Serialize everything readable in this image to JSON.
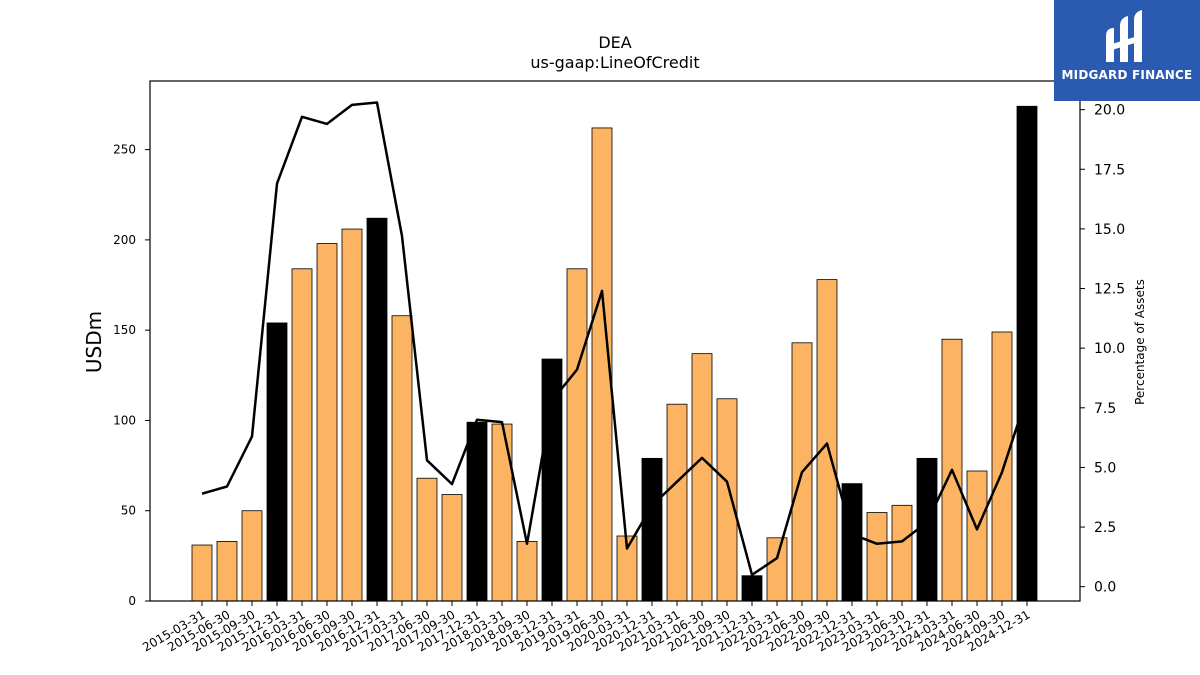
{
  "chart_data": {
    "type": "bar",
    "title": "DEA",
    "subtitle": "us-gaap:LineOfCredit",
    "ylabel": "USDm",
    "y2label": "Percentage of Assets",
    "ylim": [
      0,
      288
    ],
    "y2lim": [
      -0.6,
      21.2
    ],
    "yticks": [
      0,
      50,
      100,
      150,
      200,
      250
    ],
    "y2ticks": [
      "0.0",
      "2.5",
      "5.0",
      "7.5",
      "10.0",
      "12.5",
      "15.0",
      "17.5",
      "20.0"
    ],
    "categories": [
      "2015-03-31",
      "2015-06-30",
      "2015-09-30",
      "2015-12-31",
      "2016-03-31",
      "2016-06-30",
      "2016-09-30",
      "2016-12-31",
      "2017-03-31",
      "2017-06-30",
      "2017-09-30",
      "2017-12-31",
      "2018-03-31",
      "2018-09-30",
      "2018-12-31",
      "2019-03-31",
      "2019-06-30",
      "2020-03-31",
      "2020-12-31",
      "2021-03-31",
      "2021-06-30",
      "2021-09-30",
      "2021-12-31",
      "2022-03-31",
      "2022-06-30",
      "2022-09-30",
      "2022-12-31",
      "2023-03-31",
      "2023-06-30",
      "2023-12-31",
      "2024-03-31",
      "2024-06-30",
      "2024-09-30",
      "2024-12-31"
    ],
    "series": [
      {
        "type": "bar",
        "values": [
          31,
          33,
          50,
          154,
          184,
          198,
          206,
          212,
          158,
          68,
          59,
          99,
          98,
          33,
          134,
          184,
          262,
          36,
          79,
          109,
          137,
          112,
          14,
          35,
          143,
          178,
          65,
          49,
          53,
          79,
          145,
          72,
          149,
          274
        ],
        "highlight": [
          false,
          false,
          false,
          true,
          false,
          false,
          false,
          true,
          false,
          false,
          false,
          true,
          false,
          false,
          true,
          false,
          false,
          false,
          true,
          false,
          false,
          false,
          true,
          false,
          false,
          false,
          true,
          false,
          false,
          true,
          false,
          false,
          false,
          true
        ]
      },
      {
        "type": "line",
        "axis": "right",
        "values": [
          3.9,
          4.2,
          6.3,
          16.9,
          19.7,
          19.4,
          20.2,
          20.3,
          14.7,
          5.3,
          4.3,
          7.0,
          6.9,
          1.8,
          7.8,
          9.1,
          12.4,
          1.6,
          3.4,
          4.4,
          5.4,
          4.4,
          0.5,
          1.2,
          4.8,
          6.0,
          2.2,
          1.8,
          1.9,
          2.7,
          4.9,
          2.4,
          4.8,
          8.0
        ]
      }
    ],
    "colors": {
      "bar": "#fdb462",
      "highlight_bar": "#000000",
      "line": "#000000"
    },
    "legend": "none",
    "grid": false
  },
  "logo": {
    "text": "MIDGARD FINANCE",
    "icon": "midgard-logo-icon"
  }
}
